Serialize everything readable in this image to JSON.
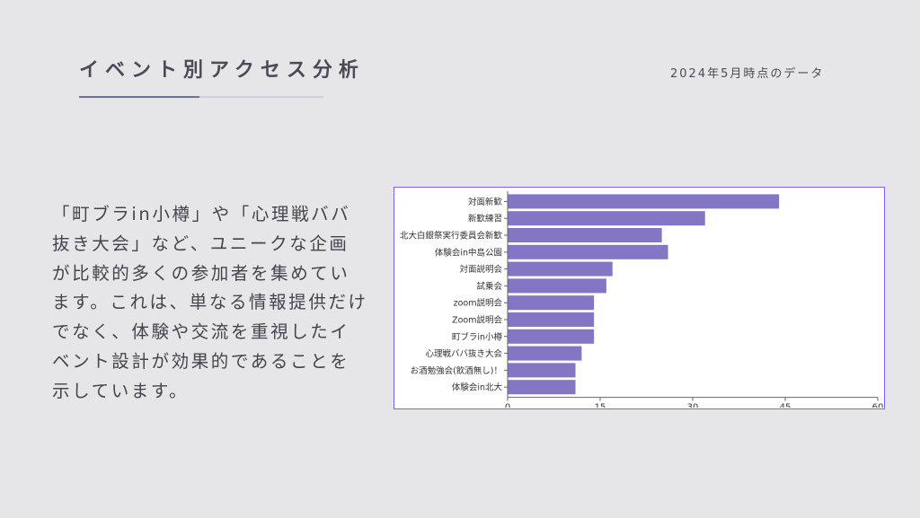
{
  "header": {
    "title": "イベント別アクセス分析",
    "date_note": "2024年5月時点のデータ"
  },
  "body": {
    "text": "「町ブラin小樽」や「心理戦ババ抜き大会」など、ユニークな企画が比較的多くの参加者を集めています。これは、単なる情報提供だけでなく、体験や交流を重視したイベント設計が効果的であることを示しています。"
  },
  "colors": {
    "bar": "#8476c4",
    "frame": "#8a5cf0",
    "accent_rule": "#6a6fa8"
  },
  "chart_data": {
    "type": "bar",
    "orientation": "horizontal",
    "categories": [
      "対面新歓",
      "新歓練習",
      "北大白銀祭実行委員会新歓",
      "体験会in中島公園",
      "対面説明会",
      "試乗会",
      "zoom説明会",
      "Zoom説明会",
      "町ブラin小樽",
      "心理戦ババ抜き大会",
      "お酒勉強会(飲酒無し)！",
      "体験会in北大"
    ],
    "values": [
      44,
      32,
      25,
      26,
      17,
      16,
      14,
      14,
      14,
      12,
      11,
      11
    ],
    "xlim": [
      0,
      60
    ],
    "xticks": [
      0,
      15,
      30,
      45,
      60
    ],
    "grid": false,
    "legend": "none"
  }
}
